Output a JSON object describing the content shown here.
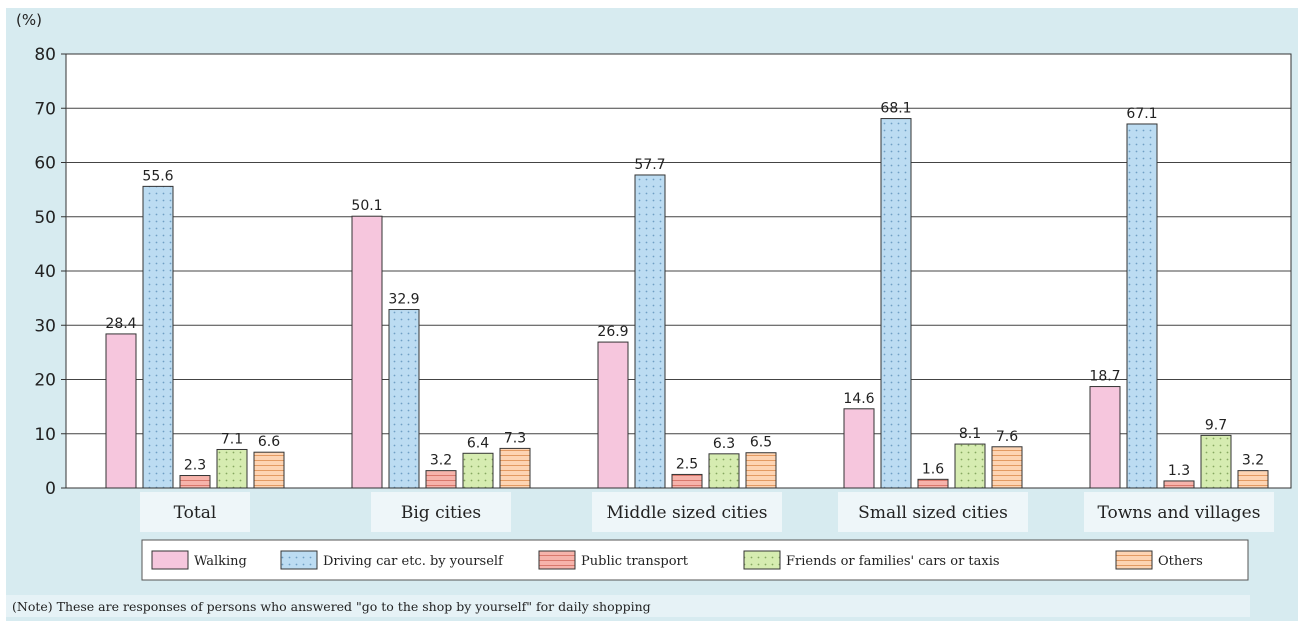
{
  "chart_data": {
    "type": "bar",
    "unit_label": "(%)",
    "ylim": [
      0,
      80
    ],
    "yticks": [
      0,
      10,
      20,
      30,
      40,
      50,
      60,
      70,
      80
    ],
    "categories": [
      "Total",
      "Big cities",
      "Middle sized cities",
      "Small sized cities",
      "Towns and villages"
    ],
    "series": [
      {
        "name": "Walking",
        "values": [
          28.4,
          50.1,
          26.9,
          14.6,
          18.7
        ],
        "labels": [
          "28.4",
          "50.1",
          "26.9",
          "14.6",
          "18.7"
        ],
        "color": "#f6c6dd",
        "pattern": "none"
      },
      {
        "name": "Driving car etc. by yourself",
        "values": [
          55.6,
          32.9,
          57.7,
          68.1,
          67.1
        ],
        "labels": [
          "55.6",
          "32.9",
          "57.7",
          "68.1",
          "67.1"
        ],
        "color": "#bcdcf2",
        "pattern": "dots"
      },
      {
        "name": "Public transport",
        "values": [
          2.3,
          3.2,
          2.5,
          1.6,
          1.3
        ],
        "labels": [
          "2.3",
          "3.2",
          "2.5",
          "1.6",
          "1.3"
        ],
        "color": "#f6b3ab",
        "pattern": "hlines"
      },
      {
        "name": "Friends or families' cars or taxis",
        "values": [
          7.1,
          6.4,
          6.3,
          8.1,
          9.7
        ],
        "labels": [
          "7.1",
          "6.4",
          "6.3",
          "8.1",
          "9.7"
        ],
        "color": "#d6ecb1",
        "pattern": "dots"
      },
      {
        "name": "Others",
        "values": [
          6.6,
          7.3,
          6.5,
          7.6,
          3.2
        ],
        "labels": [
          "6.6",
          "7.3",
          "6.5",
          "7.6",
          "3.2"
        ],
        "color": "#fdd4b3",
        "pattern": "hlines"
      }
    ],
    "legend_position": "bottom",
    "grid": true,
    "note": "(Note) These are responses of persons who answered \"go to the shop by yourself\" for daily shopping"
  }
}
